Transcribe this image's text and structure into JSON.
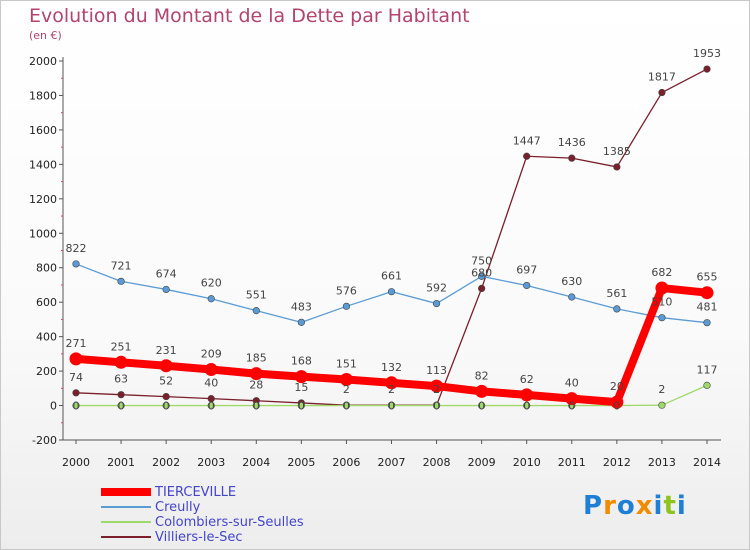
{
  "title": "Evolution du Montant de la Dette par Habitant",
  "subtitle": "(en €)",
  "brand": {
    "text": "Proxiti",
    "letters": [
      {
        "ch": "P",
        "color": "#1e7fd4"
      },
      {
        "ch": "r",
        "color": "#f08c00"
      },
      {
        "ch": "o",
        "color": "#1e7fd4"
      },
      {
        "ch": "x",
        "color": "#f08c00"
      },
      {
        "ch": "i",
        "color": "#1e7fd4"
      },
      {
        "ch": "t",
        "color": "#8fc31f"
      },
      {
        "ch": "i",
        "color": "#1e7fd4"
      }
    ]
  },
  "chart_data": {
    "type": "line",
    "title": "Evolution du Montant de la Dette par Habitant",
    "ylabel": "(en €)",
    "xlabel": "",
    "x": [
      2000,
      2001,
      2002,
      2003,
      2004,
      2005,
      2006,
      2007,
      2008,
      2009,
      2010,
      2011,
      2012,
      2013,
      2014
    ],
    "ylim": [
      -200,
      2000
    ],
    "yticks": [
      -200,
      0,
      200,
      400,
      600,
      800,
      1000,
      1200,
      1400,
      1600,
      1800,
      2000
    ],
    "grid": false,
    "legend_position": "bottom-left",
    "series": [
      {
        "name": "TIERCEVILLE",
        "color": "#ff0000",
        "emphasis": true,
        "values": [
          271,
          251,
          231,
          209,
          185,
          168,
          151,
          132,
          113,
          82,
          62,
          40,
          20,
          682,
          655
        ],
        "labels": [
          "271",
          "251",
          "231",
          "209",
          "185",
          "168",
          "151",
          "132",
          "113",
          "82",
          "62",
          "40",
          "20",
          "682",
          "655"
        ]
      },
      {
        "name": "Creully",
        "color": "#5b9bd5",
        "values": [
          822,
          721,
          674,
          620,
          551,
          483,
          576,
          661,
          592,
          750,
          697,
          630,
          561,
          510,
          481
        ],
        "labels": [
          "822",
          "721",
          "674",
          "620",
          "551",
          "483",
          "576",
          "661",
          "592",
          "750",
          "697",
          "630",
          "561",
          "510",
          "481"
        ]
      },
      {
        "name": "Colombiers-sur-Seulles",
        "color": "#9fd86b",
        "values": [
          0,
          0,
          0,
          0,
          0,
          0,
          0,
          0,
          0,
          0,
          0,
          0,
          0,
          2,
          117
        ],
        "labels": [
          "0",
          "0",
          "0",
          "0",
          "0",
          "0",
          "0",
          "0",
          "0",
          "0",
          "0",
          "0",
          "0",
          "2",
          "117"
        ]
      },
      {
        "name": "Villiers-le-Sec",
        "color": "#7a1f2b",
        "values": [
          74,
          63,
          52,
          40,
          28,
          15,
          2,
          2,
          2,
          680,
          1447,
          1436,
          1385,
          1817,
          1953
        ],
        "labels": [
          "74",
          "63",
          "52",
          "40",
          "28",
          "15",
          "2",
          "2",
          "2",
          "680",
          "1447",
          "1436",
          "1385",
          "1817",
          "1953"
        ]
      }
    ]
  }
}
